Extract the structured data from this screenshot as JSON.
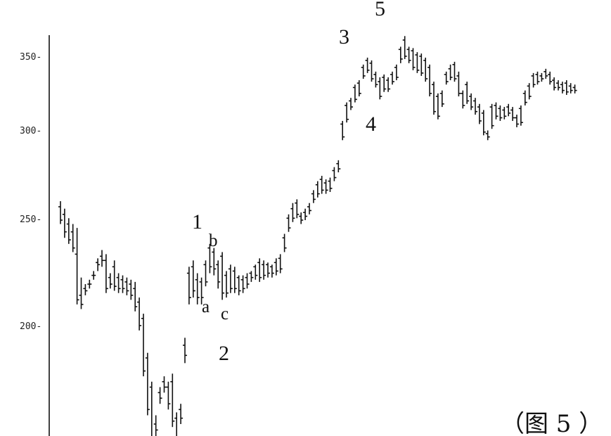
{
  "chart_data": {
    "type": "bar",
    "style": "ohlc",
    "y_ticks": [
      200,
      250,
      300,
      350
    ],
    "y_tick_labels": [
      "200-",
      "250-",
      "300-",
      "350-"
    ],
    "grid": false,
    "figure_label": "（图 5 ）",
    "wave_labels": [
      {
        "text": "1",
        "size": "large"
      },
      {
        "text": "b",
        "size": "small"
      },
      {
        "text": "a",
        "size": "small"
      },
      {
        "text": "c",
        "size": "small"
      },
      {
        "text": "2",
        "size": "large"
      },
      {
        "text": "3",
        "size": "large"
      },
      {
        "text": "4",
        "size": "large"
      },
      {
        "text": "5",
        "size": "large"
      }
    ],
    "series": [
      {
        "highs": [
          259,
          255,
          250,
          247,
          245,
          221,
          218,
          220,
          224,
          230,
          234,
          232,
          223,
          229,
          223,
          222,
          221,
          220,
          219,
          212,
          205,
          189,
          178,
          166,
          176,
          180,
          178,
          181,
          167,
          170,
          195,
          226,
          229,
          223,
          221,
          229,
          237,
          235,
          229,
          233,
          224,
          227,
          226,
          222,
          222,
          223,
          224,
          227,
          230,
          229,
          228,
          227,
          230,
          232,
          242,
          252,
          258,
          260,
          253,
          255,
          258,
          265,
          270,
          273,
          271,
          272,
          278,
          282,
          306,
          318,
          321,
          330,
          333,
          344,
          349,
          347,
          339,
          335,
          337,
          335,
          339,
          344,
          357,
          365,
          357,
          356,
          353,
          352,
          349,
          344,
          332,
          324,
          326,
          339,
          344,
          346,
          339,
          326,
          332,
          324,
          321,
          317,
          313,
          300,
          317,
          318,
          316,
          315,
          317,
          315,
          310,
          316,
          326,
          331,
          338,
          339,
          338,
          341,
          339,
          335,
          333,
          332,
          333,
          331,
          330
        ],
        "lows": [
          247,
          240,
          237,
          233,
          209,
          207,
          213,
          216,
          220,
          224,
          226,
          214,
          216,
          215,
          214,
          214,
          213,
          211,
          206,
          198,
          180,
          166,
          154,
          159,
          170,
          174,
          168,
          162,
          155,
          163,
          185,
          209,
          212,
          209,
          209,
          217,
          223,
          222,
          216,
          211,
          212,
          214,
          214,
          213,
          214,
          216,
          219,
          220,
          219,
          220,
          221,
          221,
          222,
          223,
          233,
          243,
          248,
          250,
          247,
          249,
          252,
          258,
          261,
          263,
          263,
          264,
          270,
          275,
          294,
          305,
          313,
          318,
          322,
          334,
          338,
          332,
          328,
          320,
          325,
          325,
          330,
          333,
          345,
          348,
          345,
          340,
          338,
          336,
          332,
          322,
          310,
          307,
          315,
          330,
          333,
          332,
          322,
          314,
          317,
          313,
          310,
          304,
          297,
          294,
          301,
          307,
          306,
          307,
          309,
          306,
          302,
          303,
          316,
          320,
          328,
          330,
          332,
          334,
          330,
          326,
          326,
          324,
          323,
          324,
          324
        ],
        "opens": [
          256,
          252,
          247,
          243,
          232,
          213,
          216,
          218,
          222,
          228,
          231,
          229,
          221,
          226,
          221,
          220,
          219,
          218,
          216,
          210,
          203,
          187,
          176,
          163,
          174,
          178,
          176,
          178,
          165,
          168,
          192,
          223,
          226,
          220,
          219,
          227,
          235,
          233,
          227,
          231,
          222,
          225,
          224,
          221,
          220,
          221,
          223,
          226,
          228,
          227,
          227,
          226,
          228,
          230,
          240,
          250,
          255,
          258,
          251,
          253,
          256,
          263,
          268,
          271,
          269,
          270,
          276,
          280,
          304,
          316,
          319,
          328,
          331,
          342,
          347,
          345,
          337,
          332,
          335,
          333,
          337,
          342,
          355,
          362,
          355,
          354,
          351,
          350,
          347,
          342,
          330,
          322,
          324,
          337,
          341,
          344,
          336,
          324,
          330,
          322,
          319,
          315,
          311,
          298,
          315,
          316,
          314,
          313,
          315,
          313,
          308,
          314,
          324,
          329,
          336,
          337,
          336,
          339,
          337,
          333,
          331,
          330,
          331,
          329,
          328
        ],
        "closes": [
          249,
          243,
          239,
          235,
          211,
          209,
          215,
          218,
          222,
          227,
          229,
          216,
          218,
          217,
          216,
          216,
          215,
          213,
          208,
          200,
          182,
          168,
          156,
          161,
          172,
          176,
          170,
          164,
          157,
          165,
          188,
          212,
          215,
          212,
          212,
          219,
          226,
          225,
          219,
          214,
          214,
          216,
          216,
          215,
          216,
          218,
          221,
          222,
          221,
          222,
          223,
          223,
          224,
          225,
          235,
          245,
          250,
          252,
          249,
          251,
          254,
          260,
          263,
          265,
          265,
          266,
          272,
          277,
          296,
          307,
          315,
          320,
          324,
          336,
          340,
          334,
          330,
          322,
          327,
          327,
          332,
          335,
          348,
          350,
          347,
          342,
          340,
          338,
          334,
          324,
          312,
          309,
          317,
          332,
          335,
          334,
          324,
          316,
          319,
          315,
          312,
          306,
          299,
          296,
          303,
          309,
          308,
          309,
          311,
          308,
          304,
          305,
          318,
          322,
          330,
          332,
          334,
          336,
          332,
          328,
          328,
          326,
          325,
          326,
          326
        ]
      }
    ]
  }
}
